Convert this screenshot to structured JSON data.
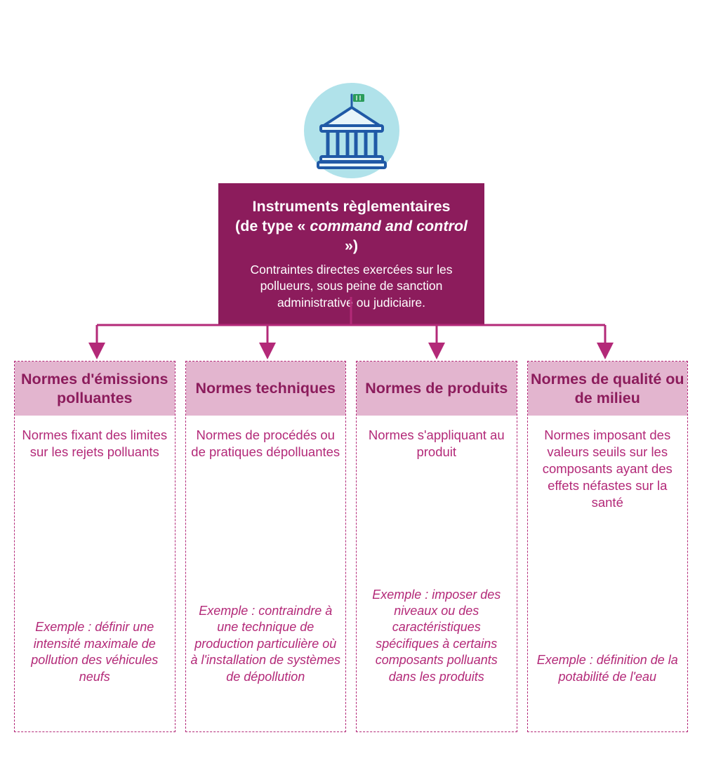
{
  "colors": {
    "background": "#ffffff",
    "iconCircleBg": "#b0e2ea",
    "buildingStroke": "#2059a6",
    "buildingFill": "#e8f5fa",
    "flag": "#2a9c5a",
    "mainBoxBg": "#8c1c5c",
    "mainBoxText": "#ffffff",
    "connectorStroke": "#b32978",
    "catBorder": "#b32978",
    "catTitleBg": "#e3b5cf",
    "catTitleText": "#8c1c5c",
    "catBodyText": "#b32978"
  },
  "main": {
    "titleLine1": "Instruments règlementaires",
    "titleLine2a": "(de type « ",
    "titleLine2b": "command and control",
    "titleLine2c": " »)",
    "description": "Contraintes directes exercées sur les pollueurs, sous peine de sanction administrative ou judiciaire."
  },
  "categories": [
    {
      "title": "Normes d'émissions polluantes",
      "desc": "Normes fixant des limites sur les rejets polluants",
      "example": "Exemple : définir une intensité maximale de pollution des véhicules neufs"
    },
    {
      "title": "Normes techniques",
      "desc": "Normes de procédés ou de pratiques dépolluantes",
      "example": "Exemple : contraindre à une technique de production particulière où à l'installation de systèmes de dépollution"
    },
    {
      "title": "Normes de produits",
      "desc": "Normes s'appliquant au produit",
      "example": "Exemple : imposer des niveaux ou des caractéristiques spécifiques à certains composants polluants dans les produits"
    },
    {
      "title": "Normes de qualité ou de milieu",
      "desc": "Normes imposant des valeurs seuils sur les composants ayant des effets néfastes sur la santé",
      "example": "Exemple : définition de la potabilité de l'eau"
    }
  ],
  "layout": {
    "connector": {
      "trunkX": 500,
      "trunkTop": 0,
      "horizY": 40,
      "branchesX": [
        138,
        381,
        622,
        862
      ],
      "branchBottom": 77,
      "strokeWidth": 3,
      "arrowSize": 8
    }
  }
}
